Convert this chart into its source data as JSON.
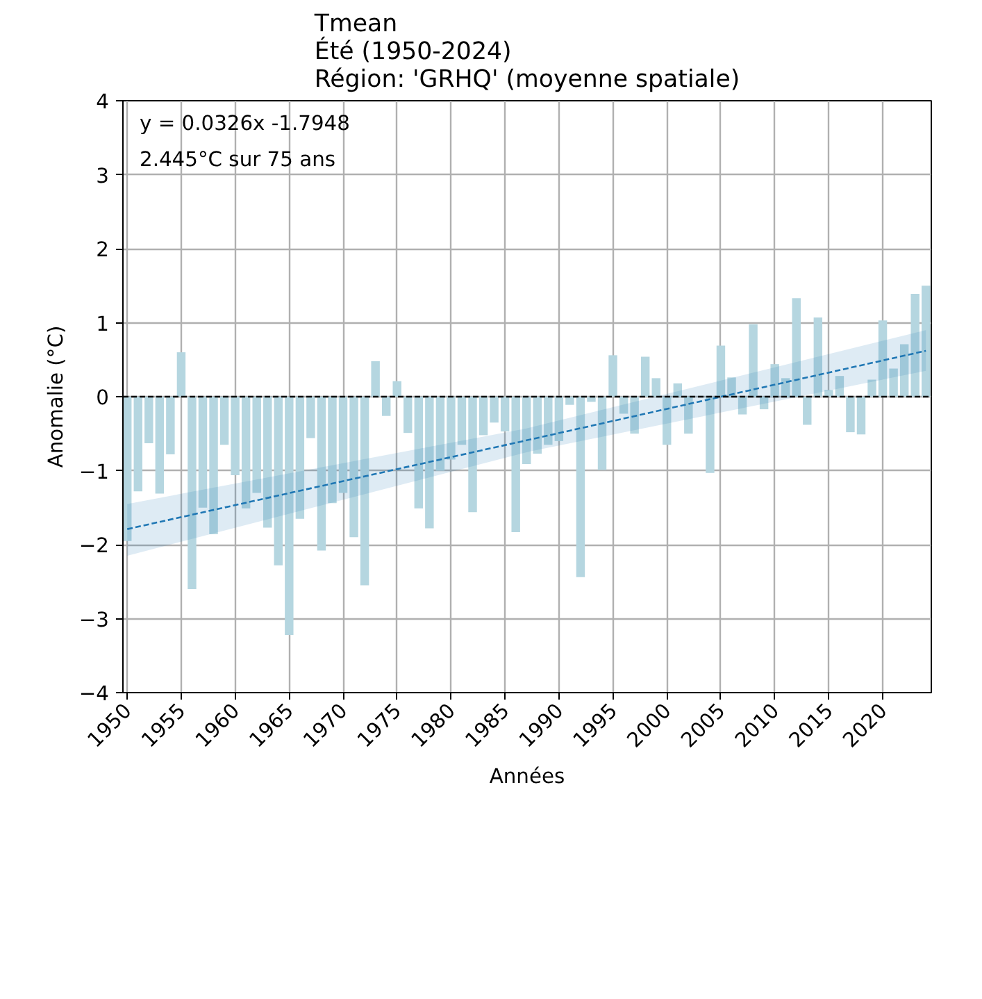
{
  "chart_data": {
    "type": "bar",
    "title": "Tmean\nÉté (1950-2024)\nRégion: 'GRHQ' (moyenne spatiale)",
    "xlabel": "Années",
    "ylabel": "Anomalie (°C)",
    "annotations": [
      "y = 0.0326x -1.7948",
      "2.445°C sur 75 ans"
    ],
    "x": [
      1950,
      1951,
      1952,
      1953,
      1954,
      1955,
      1956,
      1957,
      1958,
      1959,
      1960,
      1961,
      1962,
      1963,
      1964,
      1965,
      1966,
      1967,
      1968,
      1969,
      1970,
      1971,
      1972,
      1973,
      1974,
      1975,
      1976,
      1977,
      1978,
      1979,
      1980,
      1981,
      1982,
      1983,
      1984,
      1985,
      1986,
      1987,
      1988,
      1989,
      1990,
      1991,
      1992,
      1993,
      1994,
      1995,
      1996,
      1997,
      1998,
      1999,
      2000,
      2001,
      2002,
      2003,
      2004,
      2005,
      2006,
      2007,
      2008,
      2009,
      2010,
      2011,
      2012,
      2013,
      2014,
      2015,
      2016,
      2017,
      2018,
      2019,
      2020,
      2021,
      2022,
      2023,
      2024
    ],
    "series": [
      {
        "color": "#b5d6e0",
        "values": [
          -1.95,
          -1.28,
          -0.63,
          -1.31,
          -0.78,
          0.6,
          -2.6,
          -1.5,
          -1.86,
          -0.65,
          -1.06,
          -1.51,
          -1.3,
          -1.77,
          -2.28,
          -3.22,
          -1.65,
          -0.56,
          -2.08,
          -1.44,
          -1.3,
          -1.9,
          -2.55,
          0.48,
          -0.26,
          0.21,
          -0.49,
          -1.51,
          -1.78,
          -1.0,
          -0.85,
          -0.65,
          -1.56,
          -0.52,
          -0.35,
          -0.47,
          -1.83,
          -0.91,
          -0.77,
          -0.65,
          -0.6,
          -0.11,
          -2.44,
          -0.07,
          -0.99,
          0.56,
          -0.23,
          -0.5,
          0.54,
          0.25,
          -0.65,
          0.18,
          -0.5,
          null,
          -1.03,
          0.69,
          0.26,
          -0.24,
          0.98,
          -0.17,
          0.44,
          0.25,
          1.33,
          -0.38,
          1.07,
          0.09,
          0.28,
          -0.48,
          -0.51,
          0.23,
          1.03,
          0.38,
          0.71,
          1.39,
          1.5
        ]
      },
      {
        "type": "line",
        "color": "#1f77b4",
        "line_style": "dashed",
        "x": [
          1950,
          1987,
          2024
        ],
        "values": [
          -1.79,
          -0.59,
          0.62
        ],
        "lower": [
          -2.15,
          -0.75,
          0.35
        ],
        "upper": [
          -1.45,
          -0.43,
          0.9
        ]
      }
    ],
    "ref_lines": [
      {
        "axis": "y",
        "value": 0,
        "color": "#000000",
        "line_style": "dashed"
      }
    ],
    "xlim": [
      1949.6,
      2024.5
    ],
    "ylim": [
      -4,
      4
    ],
    "xticks": [
      1950,
      1955,
      1960,
      1965,
      1970,
      1975,
      1980,
      1985,
      1990,
      1995,
      2000,
      2005,
      2010,
      2015,
      2020
    ],
    "yticks": [
      {
        "value": -4,
        "label": "−4"
      },
      {
        "value": -3,
        "label": "−3"
      },
      {
        "value": -2,
        "label": "−2"
      },
      {
        "value": -1,
        "label": "−1"
      },
      0,
      1,
      2,
      3,
      4
    ],
    "grid": true
  }
}
